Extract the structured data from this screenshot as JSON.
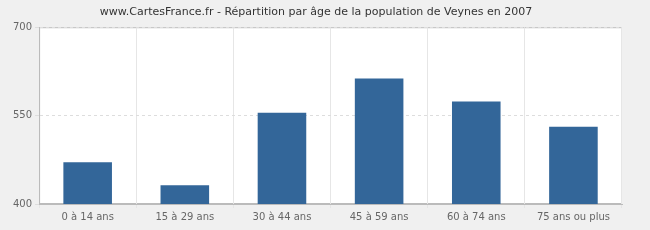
{
  "chart_data": {
    "type": "bar",
    "title": "www.CartesFrance.fr - Répartition par âge de la population de Veynes en 2007",
    "categories": [
      "0 à 14 ans",
      "15 à 29 ans",
      "30 à 44 ans",
      "45 à 59 ans",
      "60 à 74 ans",
      "75 ans ou plus"
    ],
    "values": [
      471,
      432,
      555,
      613,
      574,
      531
    ],
    "color": "#336699",
    "ylim": [
      400,
      700
    ],
    "yticks": [
      400,
      550,
      700
    ],
    "grid": true
  }
}
